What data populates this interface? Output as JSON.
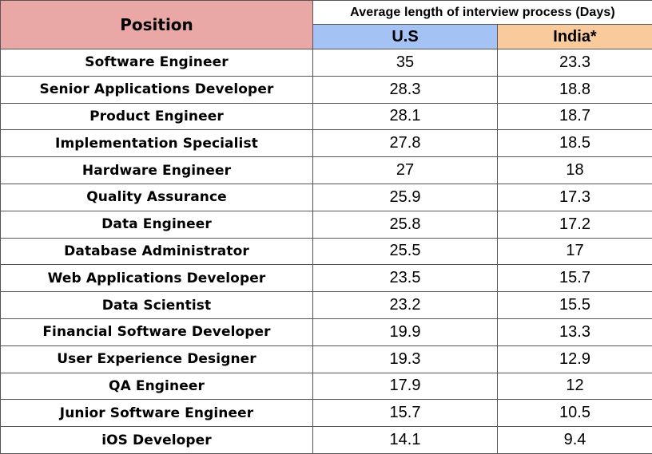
{
  "table": {
    "headers": {
      "position": "Position",
      "group": "Average length of interview process (Days)",
      "us": "U.S",
      "india": "India*"
    },
    "header_colors": {
      "position_bg": "#e9a8a6",
      "us_bg": "#a4c2f4",
      "india_bg": "#f9cb9c"
    },
    "rows": [
      {
        "position": "Software Engineer",
        "us": "35",
        "india": "23.3"
      },
      {
        "position": "Senior Applications Developer",
        "us": "28.3",
        "india": "18.8"
      },
      {
        "position": "Product Engineer",
        "us": "28.1",
        "india": "18.7"
      },
      {
        "position": "Implementation Specialist",
        "us": "27.8",
        "india": "18.5"
      },
      {
        "position": "Hardware Engineer",
        "us": "27",
        "india": "18"
      },
      {
        "position": "Quality Assurance",
        "us": "25.9",
        "india": "17.3"
      },
      {
        "position": "Data Engineer",
        "us": "25.8",
        "india": "17.2"
      },
      {
        "position": "Database Administrator",
        "us": "25.5",
        "india": "17"
      },
      {
        "position": "Web Applications Developer",
        "us": "23.5",
        "india": "15.7"
      },
      {
        "position": "Data Scientist",
        "us": "23.2",
        "india": "15.5"
      },
      {
        "position": "Financial Software Developer",
        "us": "19.9",
        "india": "13.3"
      },
      {
        "position": "User Experience Designer",
        "us": "19.3",
        "india": "12.9"
      },
      {
        "position": "QA Engineer",
        "us": "17.9",
        "india": "12"
      },
      {
        "position": "Junior Software Engineer",
        "us": "15.7",
        "india": "10.5"
      },
      {
        "position": "iOS Developer",
        "us": "14.1",
        "india": "9.4"
      }
    ]
  }
}
